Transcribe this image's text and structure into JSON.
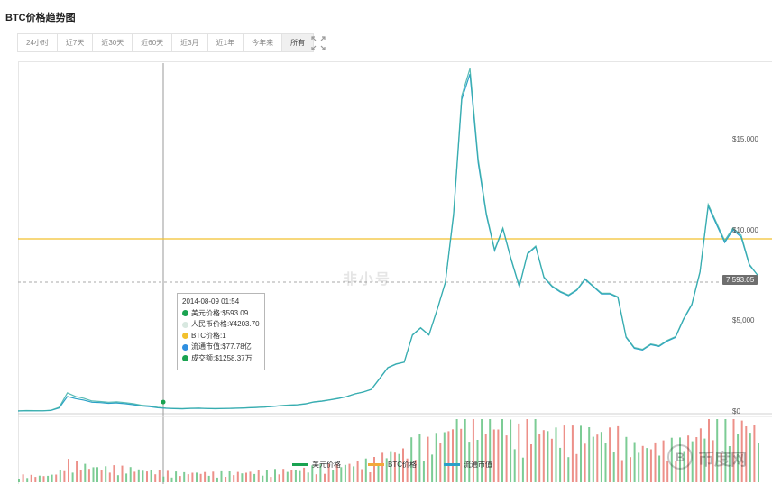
{
  "title": "BTC价格趋势图",
  "tabs": [
    {
      "label": "24小时",
      "active": false
    },
    {
      "label": "近7天",
      "active": false
    },
    {
      "label": "近30天",
      "active": false
    },
    {
      "label": "近60天",
      "active": false
    },
    {
      "label": "近3月",
      "active": false
    },
    {
      "label": "近1年",
      "active": false
    },
    {
      "label": "今年来",
      "active": false
    },
    {
      "label": "所有",
      "active": true
    }
  ],
  "watermark": "非小号",
  "corner_watermark": "币度网",
  "colors": {
    "usd_price": "#1aa351",
    "btc_price": "#f2c12e",
    "market_cap": "#2aa0c8",
    "volume_up": "#e8746c",
    "volume_down": "#5bbf7a",
    "price_tag_bg": "#6e6e6e"
  },
  "tooltip": {
    "date": "2014-08-09 01:54",
    "rows": [
      {
        "text": "美元价格:$593.09",
        "color": "#1aa351"
      },
      {
        "text": "人民币价格:¥4203.70",
        "color": "#d8e8e0"
      },
      {
        "text": "BTC价格:1",
        "color": "#f2c12e"
      },
      {
        "text": "流通市值:$77.78亿",
        "color": "#2f8fe0"
      },
      {
        "text": "成交额:$1258.37万",
        "color": "#1aa351"
      }
    ]
  },
  "current_price_label": "7,593.05",
  "chart_data": {
    "type": "line",
    "x_start": "2013-04",
    "x_end": "2018-08",
    "y_ticks": [
      "$15,000",
      "$10,000",
      "$5,000",
      "$0"
    ],
    "ylim": [
      0,
      19000
    ],
    "legend": [
      "美元价格",
      "BTC价格",
      "流通市值"
    ],
    "series": [
      {
        "name": "美元价格",
        "values": [
          110,
          125,
          120,
          115,
          140,
          300,
          1100,
          900,
          800,
          650,
          620,
          580,
          600,
          560,
          500,
          420,
          380,
          300,
          260,
          240,
          230,
          250,
          260,
          240,
          230,
          240,
          250,
          260,
          280,
          300,
          320,
          360,
          400,
          430,
          450,
          500,
          600,
          650,
          720,
          800,
          900,
          1050,
          1150,
          1300,
          1900,
          2500,
          2700,
          2800,
          4300,
          4700,
          4300,
          5700,
          7200,
          11000,
          17500,
          19000,
          14000,
          11000,
          9000,
          10200,
          8500,
          7000,
          8800,
          9200,
          7500,
          7000,
          6700,
          6500,
          6800,
          7400,
          7000,
          6600,
          6600,
          6400,
          4200,
          3600,
          3500,
          3800,
          3700,
          4000,
          4200,
          5200,
          6000,
          7800,
          11500,
          10500,
          9500,
          10200,
          9800,
          8200,
          7593
        ]
      },
      {
        "name": "流通市值",
        "values": [
          100,
          115,
          110,
          108,
          130,
          270,
          900,
          780,
          700,
          580,
          560,
          520,
          540,
          500,
          450,
          380,
          340,
          280,
          250,
          230,
          220,
          240,
          250,
          235,
          225,
          235,
          245,
          255,
          275,
          295,
          315,
          350,
          390,
          420,
          440,
          490,
          590,
          640,
          710,
          790,
          890,
          1040,
          1140,
          1290,
          1880,
          2480,
          2680,
          2790,
          4280,
          4680,
          4290,
          5680,
          7180,
          10900,
          17300,
          18700,
          13800,
          10900,
          8950,
          10150,
          8450,
          6960,
          8760,
          9160,
          7460,
          6960,
          6660,
          6460,
          6760,
          7360,
          6960,
          6560,
          6560,
          6360,
          4160,
          3560,
          3460,
          3760,
          3660,
          3960,
          4160,
          5160,
          5960,
          7760,
          11400,
          10400,
          9400,
          10100,
          9700,
          8150,
          7593
        ]
      },
      {
        "name": "BTC价格",
        "values": [
          1
        ]
      }
    ]
  }
}
